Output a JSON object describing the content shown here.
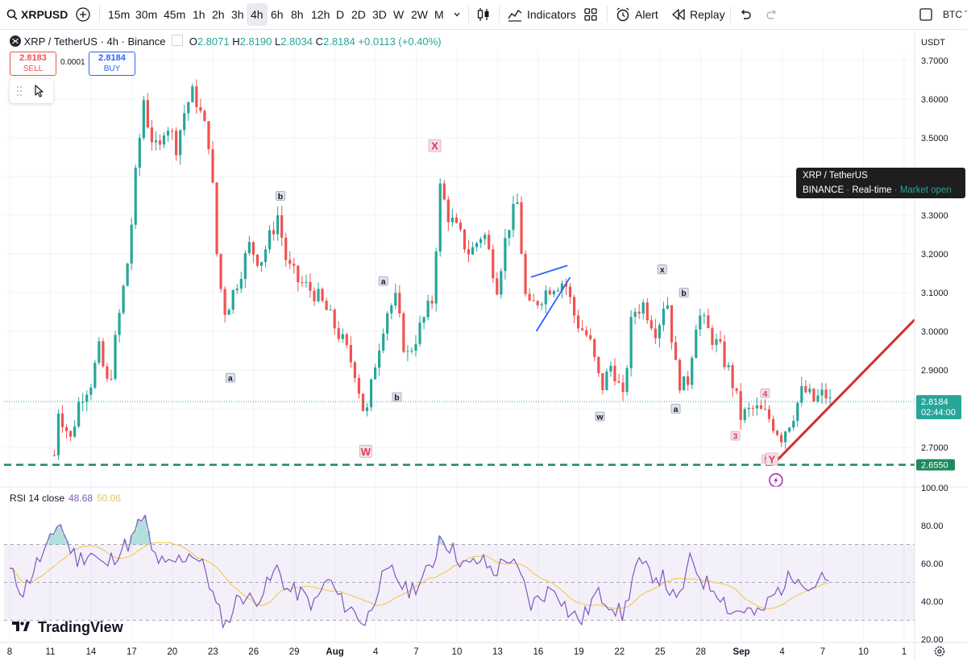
{
  "toolbar": {
    "symbol": "XRPUSD",
    "timeframes": [
      "15m",
      "30m",
      "45m",
      "1h",
      "2h",
      "3h",
      "4h",
      "6h",
      "8h",
      "12h",
      "D",
      "2D",
      "3D",
      "W",
      "2W",
      "M"
    ],
    "active_timeframe": "4h",
    "indicators_label": "Indicators",
    "alert_label": "Alert",
    "replay_label": "Replay",
    "right_text": "BTC T"
  },
  "legend": {
    "title": "XRP / TetherUS · 4h · Binance",
    "o_label": "O",
    "o": "2.8071",
    "h_label": "H",
    "h": "2.8190",
    "l_label": "L",
    "l": "2.8034",
    "c_label": "C",
    "c": "2.8184",
    "change": "+0.0113 (+0.40%)"
  },
  "trade": {
    "sell_price": "2.8183",
    "sell_label": "SELL",
    "spread": "0.0001",
    "buy_price": "2.8184",
    "buy_label": "BUY"
  },
  "tooltip": {
    "line1": "XRP / TetherUS",
    "exchange": "BINANCE",
    "feed": "Real-time",
    "status": "Market open"
  },
  "price_axis": {
    "currency": "USDT",
    "current_price": "2.8184",
    "countdown": "02:44:00",
    "support_label": "2.6550"
  },
  "rsi": {
    "title": "RSI 14 close",
    "value": "48.68",
    "ma_value": "50.06"
  },
  "brand": "TradingView",
  "colors": {
    "up": "#26a69a",
    "down": "#ef5350",
    "support": "#1e8a5e",
    "rsi": "#7e57c2",
    "rsi_ma": "#f5c84c",
    "arrow": "#d32f2f",
    "wedge": "#2962ff"
  },
  "chart_data": {
    "type": "candlestick",
    "symbol": "XRP / TetherUS",
    "interval": "4h",
    "exchange": "Binance",
    "price_range": [
      2.62,
      3.74
    ],
    "price_ticks": [
      3.7,
      3.6,
      3.5,
      3.4,
      3.3,
      3.2,
      3.1,
      3.0,
      2.9,
      2.8,
      2.7
    ],
    "x_ticks": [
      "8",
      "11",
      "14",
      "17",
      "20",
      "23",
      "26",
      "29",
      "Aug",
      "4",
      "7",
      "10",
      "13",
      "16",
      "19",
      "22",
      "25",
      "28",
      "Sep",
      "4",
      "7",
      "10",
      "1"
    ],
    "close_path": [
      {
        "day": 11.3,
        "price": 2.68
      },
      {
        "day": 11.6,
        "price": 2.8
      },
      {
        "day": 12.5,
        "price": 2.72
      },
      {
        "day": 13.2,
        "price": 2.83
      },
      {
        "day": 14.0,
        "price": 2.87
      },
      {
        "day": 14.6,
        "price": 2.95
      },
      {
        "day": 15.3,
        "price": 2.85
      },
      {
        "day": 16.0,
        "price": 3.02
      },
      {
        "day": 16.8,
        "price": 3.2
      },
      {
        "day": 17.3,
        "price": 3.4
      },
      {
        "day": 17.9,
        "price": 3.6
      },
      {
        "day": 18.3,
        "price": 3.52
      },
      {
        "day": 19.0,
        "price": 3.45
      },
      {
        "day": 19.5,
        "price": 3.55
      },
      {
        "day": 20.3,
        "price": 3.48
      },
      {
        "day": 21.0,
        "price": 3.58
      },
      {
        "day": 21.6,
        "price": 3.62
      },
      {
        "day": 22.2,
        "price": 3.55
      },
      {
        "day": 22.8,
        "price": 3.48
      },
      {
        "day": 23.3,
        "price": 3.2
      },
      {
        "day": 23.8,
        "price": 3.05
      },
      {
        "day": 24.3,
        "price": 3.08
      },
      {
        "day": 25.0,
        "price": 3.15
      },
      {
        "day": 25.7,
        "price": 3.22
      },
      {
        "day": 26.5,
        "price": 3.18
      },
      {
        "day": 27.3,
        "price": 3.25
      },
      {
        "day": 27.8,
        "price": 3.3
      },
      {
        "day": 28.5,
        "price": 3.17
      },
      {
        "day": 29.3,
        "price": 3.13
      },
      {
        "day": 30.5,
        "price": 3.1
      },
      {
        "day": 31.3,
        "price": 3.06
      },
      {
        "day": 32.5,
        "price": 2.98
      },
      {
        "day": 33.5,
        "price": 2.9
      },
      {
        "day": 34.3,
        "price": 2.77
      },
      {
        "day": 35.0,
        "price": 2.92
      },
      {
        "day": 35.8,
        "price": 3.05
      },
      {
        "day": 36.5,
        "price": 3.08
      },
      {
        "day": 37.3,
        "price": 2.93
      },
      {
        "day": 38.2,
        "price": 3.0
      },
      {
        "day": 39.2,
        "price": 3.08
      },
      {
        "day": 39.8,
        "price": 3.37
      },
      {
        "day": 40.4,
        "price": 3.3
      },
      {
        "day": 41.2,
        "price": 3.25
      },
      {
        "day": 42.0,
        "price": 3.2
      },
      {
        "day": 43.0,
        "price": 3.26
      },
      {
        "day": 44.0,
        "price": 3.12
      },
      {
        "day": 44.8,
        "price": 3.27
      },
      {
        "day": 45.5,
        "price": 3.33
      },
      {
        "day": 46.2,
        "price": 3.05
      },
      {
        "day": 47.0,
        "price": 3.08
      },
      {
        "day": 48.0,
        "price": 3.12
      },
      {
        "day": 49.0,
        "price": 3.13
      },
      {
        "day": 49.8,
        "price": 3.03
      },
      {
        "day": 50.8,
        "price": 2.98
      },
      {
        "day": 51.7,
        "price": 2.85
      },
      {
        "day": 52.5,
        "price": 2.92
      },
      {
        "day": 53.3,
        "price": 2.82
      },
      {
        "day": 54.0,
        "price": 3.05
      },
      {
        "day": 54.8,
        "price": 3.07
      },
      {
        "day": 55.8,
        "price": 3.0
      },
      {
        "day": 56.5,
        "price": 3.1
      },
      {
        "day": 57.3,
        "price": 2.88
      },
      {
        "day": 58.0,
        "price": 2.85
      },
      {
        "day": 58.8,
        "price": 3.05
      },
      {
        "day": 59.6,
        "price": 3.0
      },
      {
        "day": 60.5,
        "price": 2.95
      },
      {
        "day": 61.3,
        "price": 2.88
      },
      {
        "day": 62.0,
        "price": 2.78
      },
      {
        "day": 63.0,
        "price": 2.8
      },
      {
        "day": 64.0,
        "price": 2.78
      },
      {
        "day": 65.0,
        "price": 2.73
      },
      {
        "day": 65.8,
        "price": 2.78
      },
      {
        "day": 66.6,
        "price": 2.85
      },
      {
        "day": 67.4,
        "price": 2.82
      },
      {
        "day": 68.2,
        "price": 2.84
      },
      {
        "day": 68.7,
        "price": 2.81
      }
    ],
    "support_level": 2.655,
    "wave_labels": [
      {
        "text": "b",
        "day": 28.0,
        "price": 3.35
      },
      {
        "text": "a",
        "day": 24.3,
        "price": 2.88
      },
      {
        "text": "X",
        "day": 39.4,
        "price": 3.48
      },
      {
        "text": "a",
        "day": 35.6,
        "price": 3.13
      },
      {
        "text": "b",
        "day": 36.6,
        "price": 2.83
      },
      {
        "text": "W",
        "day": 34.3,
        "price": 2.69
      },
      {
        "text": "x",
        "day": 56.2,
        "price": 3.16
      },
      {
        "text": "b",
        "day": 57.8,
        "price": 3.1
      },
      {
        "text": "w",
        "day": 51.6,
        "price": 2.78
      },
      {
        "text": "a",
        "day": 57.2,
        "price": 2.8
      },
      {
        "text": "4",
        "day": 63.8,
        "price": 2.84
      },
      {
        "text": "3",
        "day": 61.6,
        "price": 2.73
      },
      {
        "text": "5",
        "day": 63.9,
        "price": 2.67
      },
      {
        "text": "Y",
        "day": 64.3,
        "price": 2.67
      }
    ],
    "rsi_ticks": [
      100,
      80,
      60,
      40,
      20
    ],
    "rsi_bands": [
      30,
      50,
      70
    ],
    "rsi_path": [
      {
        "day": 8.0,
        "rsi": 56
      },
      {
        "day": 9.0,
        "rsi": 45
      },
      {
        "day": 10.0,
        "rsi": 60
      },
      {
        "day": 10.8,
        "rsi": 68
      },
      {
        "day": 11.3,
        "rsi": 76
      },
      {
        "day": 11.6,
        "rsi": 84
      },
      {
        "day": 12.3,
        "rsi": 70
      },
      {
        "day": 13.0,
        "rsi": 62
      },
      {
        "day": 14.0,
        "rsi": 66
      },
      {
        "day": 15.0,
        "rsi": 58
      },
      {
        "day": 16.0,
        "rsi": 66
      },
      {
        "day": 17.0,
        "rsi": 72
      },
      {
        "day": 17.9,
        "rsi": 86
      },
      {
        "day": 18.5,
        "rsi": 66
      },
      {
        "day": 19.5,
        "rsi": 58
      },
      {
        "day": 20.5,
        "rsi": 62
      },
      {
        "day": 21.5,
        "rsi": 66
      },
      {
        "day": 22.5,
        "rsi": 56
      },
      {
        "day": 23.3,
        "rsi": 36
      },
      {
        "day": 24.0,
        "rsi": 28
      },
      {
        "day": 25.0,
        "rsi": 44
      },
      {
        "day": 26.0,
        "rsi": 40
      },
      {
        "day": 27.0,
        "rsi": 48
      },
      {
        "day": 27.8,
        "rsi": 58
      },
      {
        "day": 28.5,
        "rsi": 46
      },
      {
        "day": 29.5,
        "rsi": 44
      },
      {
        "day": 30.5,
        "rsi": 38
      },
      {
        "day": 31.5,
        "rsi": 52
      },
      {
        "day": 32.5,
        "rsi": 40
      },
      {
        "day": 33.5,
        "rsi": 34
      },
      {
        "day": 34.3,
        "rsi": 28
      },
      {
        "day": 35.3,
        "rsi": 50
      },
      {
        "day": 36.3,
        "rsi": 56
      },
      {
        "day": 37.3,
        "rsi": 45
      },
      {
        "day": 38.3,
        "rsi": 50
      },
      {
        "day": 39.3,
        "rsi": 60
      },
      {
        "day": 39.8,
        "rsi": 76
      },
      {
        "day": 40.8,
        "rsi": 66
      },
      {
        "day": 41.8,
        "rsi": 58
      },
      {
        "day": 42.8,
        "rsi": 62
      },
      {
        "day": 43.8,
        "rsi": 55
      },
      {
        "day": 44.8,
        "rsi": 64
      },
      {
        "day": 45.8,
        "rsi": 52
      },
      {
        "day": 46.5,
        "rsi": 38
      },
      {
        "day": 47.5,
        "rsi": 44
      },
      {
        "day": 48.3,
        "rsi": 48
      },
      {
        "day": 49.3,
        "rsi": 34
      },
      {
        "day": 50.3,
        "rsi": 30
      },
      {
        "day": 51.3,
        "rsi": 44
      },
      {
        "day": 52.3,
        "rsi": 40
      },
      {
        "day": 53.3,
        "rsi": 32
      },
      {
        "day": 54.3,
        "rsi": 60
      },
      {
        "day": 55.3,
        "rsi": 55
      },
      {
        "day": 56.3,
        "rsi": 52
      },
      {
        "day": 57.3,
        "rsi": 38
      },
      {
        "day": 58.3,
        "rsi": 62
      },
      {
        "day": 59.3,
        "rsi": 50
      },
      {
        "day": 60.3,
        "rsi": 46
      },
      {
        "day": 61.3,
        "rsi": 34
      },
      {
        "day": 62.3,
        "rsi": 36
      },
      {
        "day": 63.3,
        "rsi": 32
      },
      {
        "day": 64.3,
        "rsi": 42
      },
      {
        "day": 65.3,
        "rsi": 50
      },
      {
        "day": 66.3,
        "rsi": 56
      },
      {
        "day": 67.0,
        "rsi": 46
      },
      {
        "day": 67.8,
        "rsi": 52
      },
      {
        "day": 68.7,
        "rsi": 49
      }
    ]
  }
}
